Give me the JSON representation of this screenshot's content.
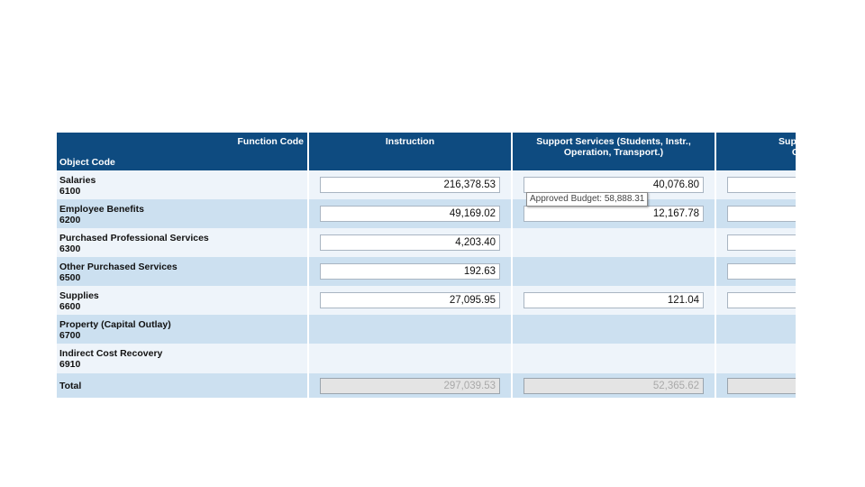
{
  "header": {
    "function_code_label": "Function Code",
    "object_code_label": "Object Code",
    "columns": [
      "Instruction",
      "Support Services (Students, Instr., Operation, Transport.)",
      "Support Serv Central"
    ],
    "column_lines": [
      [
        "Instruction"
      ],
      [
        "Support Services (Students, Instr.,",
        "Operation, Transport.)"
      ],
      [
        "Support Serv",
        "Central"
      ]
    ]
  },
  "rows": [
    {
      "name": "Salaries",
      "code": "6100",
      "values": [
        "216,378.53",
        "40,076.80",
        ""
      ]
    },
    {
      "name": "Employee Benefits",
      "code": "6200",
      "values": [
        "49,169.02",
        "12,167.78",
        ""
      ]
    },
    {
      "name": "Purchased Professional Services",
      "code": "6300",
      "values": [
        "4,203.40",
        null,
        ""
      ]
    },
    {
      "name": "Other Purchased Services",
      "code": "6500",
      "values": [
        "192.63",
        null,
        ""
      ]
    },
    {
      "name": "Supplies",
      "code": "6600",
      "values": [
        "27,095.95",
        "121.04",
        ""
      ]
    },
    {
      "name": "Property (Capital Outlay)",
      "code": "6700",
      "values": [
        null,
        null,
        null
      ]
    },
    {
      "name": "Indirect Cost Recovery",
      "code": "6910",
      "values": [
        null,
        null,
        null
      ]
    }
  ],
  "total": {
    "label": "Total",
    "values": [
      "297,039.53",
      "52,365.62",
      ""
    ]
  },
  "tooltip": "Approved Budget: 58,888.31"
}
